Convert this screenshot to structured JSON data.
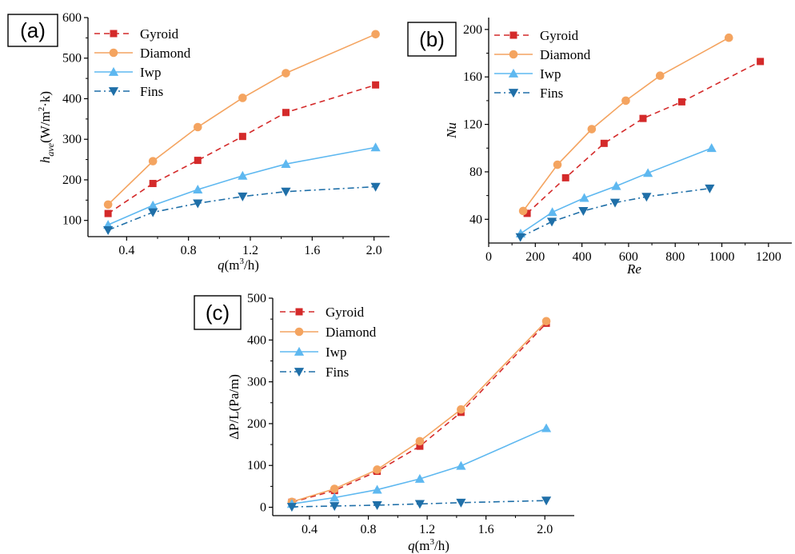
{
  "chart_data": [
    {
      "id": "a",
      "type": "line",
      "panel_label": "(a)",
      "xlabel": "q(m³/h)",
      "ylabel": "h_ave(W/m²·k)",
      "xlim": [
        0.15,
        2.1
      ],
      "ylim": [
        60,
        600
      ],
      "xticks": [
        0.4,
        0.8,
        1.2,
        1.6,
        2.0
      ],
      "xtick_labels": [
        "0.4",
        "0.8",
        "1.2",
        "1.6",
        "2.0"
      ],
      "yticks": [
        100,
        200,
        300,
        400,
        500,
        600
      ],
      "ytick_labels": [
        "100",
        "200",
        "300",
        "400",
        "500",
        "600"
      ],
      "legend_position": "top-left",
      "series": [
        {
          "name": "Gyroid",
          "color": "#d42a2a",
          "line": "dashed",
          "marker": "square",
          "x": [
            0.28,
            0.57,
            0.86,
            1.15,
            1.43,
            2.01
          ],
          "y": [
            117,
            191,
            248,
            307,
            366,
            434
          ]
        },
        {
          "name": "Diamond",
          "color": "#f4a460",
          "line": "solid",
          "marker": "circle",
          "x": [
            0.28,
            0.57,
            0.86,
            1.15,
            1.43,
            2.01
          ],
          "y": [
            139,
            246,
            330,
            402,
            463,
            559
          ]
        },
        {
          "name": "Iwp",
          "color": "#5eb8f0",
          "line": "solid",
          "marker": "triangle-up",
          "x": [
            0.28,
            0.57,
            0.86,
            1.15,
            1.43,
            2.01
          ],
          "y": [
            89,
            137,
            176,
            210,
            239,
            280
          ]
        },
        {
          "name": "Fins",
          "color": "#1f6fa8",
          "line": "dashdot",
          "marker": "triangle-down",
          "x": [
            0.28,
            0.57,
            0.86,
            1.15,
            1.43,
            2.01
          ],
          "y": [
            76,
            120,
            142,
            159,
            171,
            183
          ]
        }
      ]
    },
    {
      "id": "b",
      "type": "line",
      "panel_label": "(b)",
      "xlabel": "Re",
      "ylabel": "Nu",
      "xlim": [
        0,
        1300
      ],
      "ylim": [
        20,
        210
      ],
      "xticks": [
        0,
        200,
        400,
        600,
        800,
        1000,
        1200
      ],
      "xtick_labels": [
        "0",
        "200",
        "400",
        "600",
        "800",
        "1000",
        "1200"
      ],
      "yticks": [
        40,
        80,
        120,
        160,
        200
      ],
      "ytick_labels": [
        "40",
        "80",
        "120",
        "160",
        "200"
      ],
      "legend_position": "top-left",
      "series": [
        {
          "name": "Gyroid",
          "color": "#d42a2a",
          "line": "dashed",
          "marker": "square",
          "x": [
            165,
            330,
            495,
            662,
            828,
            1165
          ],
          "y": [
            45,
            75,
            104,
            125,
            139,
            173
          ]
        },
        {
          "name": "Diamond",
          "color": "#f4a460",
          "line": "solid",
          "marker": "circle",
          "x": [
            148,
            295,
            442,
            588,
            735,
            1030
          ],
          "y": [
            47,
            86,
            116,
            140,
            161,
            193
          ]
        },
        {
          "name": "Iwp",
          "color": "#5eb8f0",
          "line": "solid",
          "marker": "triangle-up",
          "x": [
            137,
            273,
            410,
            547,
            683,
            956
          ],
          "y": [
            28,
            46,
            58,
            68,
            79,
            100
          ]
        },
        {
          "name": "Fins",
          "color": "#1f6fa8",
          "line": "dashdot",
          "marker": "triangle-down",
          "x": [
            136,
            271,
            406,
            542,
            677,
            948
          ],
          "y": [
            25,
            38,
            47,
            54,
            59,
            66
          ]
        }
      ]
    },
    {
      "id": "c",
      "type": "line",
      "panel_label": "(c)",
      "xlabel": "q(m³/h)",
      "ylabel": "ΔP/L(Pa/m)",
      "xlim": [
        0.15,
        2.2
      ],
      "ylim": [
        -20,
        500
      ],
      "xticks": [
        0.4,
        0.8,
        1.2,
        1.6,
        2.0
      ],
      "xtick_labels": [
        "0.4",
        "0.8",
        "1.2",
        "1.6",
        "2.0"
      ],
      "yticks": [
        0,
        100,
        200,
        300,
        400,
        500
      ],
      "ytick_labels": [
        "0",
        "100",
        "200",
        "300",
        "400",
        "500"
      ],
      "legend_position": "top-left",
      "series": [
        {
          "name": "Gyroid",
          "color": "#d42a2a",
          "line": "dashed",
          "marker": "square",
          "x": [
            0.28,
            0.57,
            0.86,
            1.15,
            1.43,
            2.01
          ],
          "y": [
            12,
            40,
            86,
            146,
            227,
            440
          ]
        },
        {
          "name": "Diamond",
          "color": "#f4a460",
          "line": "solid",
          "marker": "circle",
          "x": [
            0.28,
            0.57,
            0.86,
            1.15,
            1.43,
            2.01
          ],
          "y": [
            13,
            44,
            90,
            158,
            234,
            445
          ]
        },
        {
          "name": "Iwp",
          "color": "#5eb8f0",
          "line": "solid",
          "marker": "triangle-up",
          "x": [
            0.28,
            0.57,
            0.86,
            1.15,
            1.43,
            2.01
          ],
          "y": [
            8,
            23,
            42,
            68,
            99,
            189
          ]
        },
        {
          "name": "Fins",
          "color": "#1f6fa8",
          "line": "dashdot",
          "marker": "triangle-down",
          "x": [
            0.28,
            0.57,
            0.86,
            1.15,
            1.43,
            2.01
          ],
          "y": [
            1,
            3,
            5,
            8,
            11,
            16
          ]
        }
      ]
    }
  ]
}
